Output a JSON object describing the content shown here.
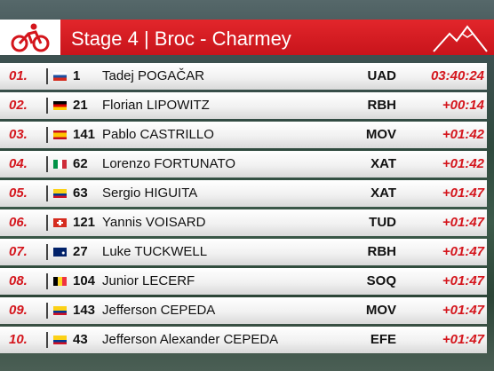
{
  "header": {
    "title": "Stage 4 | Broc - Charmey"
  },
  "table": {
    "rows": [
      {
        "rank": "01.",
        "number": "1",
        "name": "Tadej POGAČAR",
        "team": "UAD",
        "time": "03:40:24"
      },
      {
        "rank": "02.",
        "number": "21",
        "name": "Florian LIPOWITZ",
        "team": "RBH",
        "time": "+00:14"
      },
      {
        "rank": "03.",
        "number": "141",
        "name": "Pablo CASTRILLO",
        "team": "MOV",
        "time": "+01:42"
      },
      {
        "rank": "04.",
        "number": "62",
        "name": "Lorenzo FORTUNATO",
        "team": "XAT",
        "time": "+01:42"
      },
      {
        "rank": "05.",
        "number": "63",
        "name": "Sergio HIGUITA",
        "team": "XAT",
        "time": "+01:47"
      },
      {
        "rank": "06.",
        "number": "121",
        "name": "Yannis VOISARD",
        "team": "TUD",
        "time": "+01:47"
      },
      {
        "rank": "07.",
        "number": "27",
        "name": "Luke TUCKWELL",
        "team": "RBH",
        "time": "+01:47"
      },
      {
        "rank": "08.",
        "number": "104",
        "name": "Junior LECERF",
        "team": "SOQ",
        "time": "+01:47"
      },
      {
        "rank": "09.",
        "number": "143",
        "name": "Jefferson CEPEDA",
        "team": "MOV",
        "time": "+01:47"
      },
      {
        "rank": "10.",
        "number": "43",
        "name": "Jefferson Alexander CEPEDA",
        "team": "EFE",
        "time": "+01:47"
      }
    ]
  }
}
